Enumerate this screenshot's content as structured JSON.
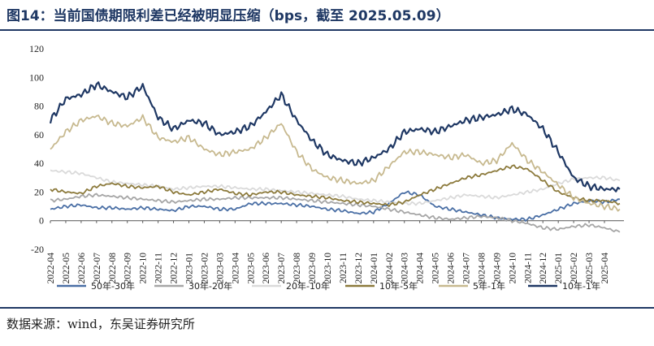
{
  "title": "图14：当前国债期限利差已经被明显压缩（bps，截至 2025.05.09）",
  "source": "数据来源：wind，东吴证券研究所",
  "chart_data": {
    "type": "line",
    "title": "图14：当前国债期限利差已经被明显压缩（bps，截至 2025.05.09）",
    "xlabel": "",
    "ylabel": "",
    "ylim": [
      -20,
      120
    ],
    "yticks": [
      -20,
      0,
      20,
      40,
      60,
      80,
      100,
      120
    ],
    "x_tick_labels": [
      "2022-04",
      "2022-05",
      "2022-06",
      "2022-07",
      "2022-08",
      "2022-09",
      "2022-10",
      "2022-11",
      "2022-12",
      "2023-01",
      "2023-02",
      "2023-03",
      "2023-04",
      "2023-05",
      "2023-06",
      "2023-07",
      "2023-08",
      "2023-09",
      "2023-10",
      "2023-11",
      "2023-12",
      "2024-01",
      "2024-02",
      "2024-03",
      "2024-04",
      "2024-05",
      "2024-06",
      "2024-07",
      "2024-08",
      "2024-09",
      "2024-10",
      "2024-11",
      "2024-12",
      "2025-01",
      "2025-02",
      "2025-03",
      "2025-04"
    ],
    "x_end": "2025-05-09",
    "grid": false,
    "legend_position": "bottom",
    "series": [
      {
        "name": "50年-30年",
        "color": "#4a6fa5",
        "x": [
          "2022-04",
          "2022-05",
          "2022-06",
          "2022-07",
          "2022-08",
          "2022-09",
          "2022-10",
          "2022-11",
          "2022-12",
          "2023-01",
          "2023-02",
          "2023-03",
          "2023-04",
          "2023-05",
          "2023-06",
          "2023-07",
          "2023-08",
          "2023-09",
          "2023-10",
          "2023-11",
          "2023-12",
          "2024-01",
          "2024-02",
          "2024-03",
          "2024-04",
          "2024-05",
          "2024-06",
          "2024-07",
          "2024-08",
          "2024-09",
          "2024-10",
          "2024-11",
          "2024-12",
          "2025-01",
          "2025-02",
          "2025-03",
          "2025-04",
          "2025-05"
        ],
        "values": [
          8,
          10,
          11,
          9,
          9,
          8,
          9,
          8,
          7,
          10,
          10,
          8,
          8,
          12,
          12,
          12,
          11,
          10,
          8,
          7,
          5,
          6,
          12,
          20,
          18,
          10,
          8,
          6,
          4,
          2,
          1,
          1,
          4,
          8,
          12,
          14,
          13,
          15
        ]
      },
      {
        "name": "30年-20年",
        "color": "#a6a6a6",
        "x": [
          "2022-04",
          "2022-05",
          "2022-06",
          "2022-07",
          "2022-08",
          "2022-09",
          "2022-10",
          "2022-11",
          "2022-12",
          "2023-01",
          "2023-02",
          "2023-03",
          "2023-04",
          "2023-05",
          "2023-06",
          "2023-07",
          "2023-08",
          "2023-09",
          "2023-10",
          "2023-11",
          "2023-12",
          "2024-01",
          "2024-02",
          "2024-03",
          "2024-04",
          "2024-05",
          "2024-06",
          "2024-07",
          "2024-08",
          "2024-09",
          "2024-10",
          "2024-11",
          "2024-12",
          "2025-01",
          "2025-02",
          "2025-03",
          "2025-04",
          "2025-05"
        ],
        "values": [
          14,
          15,
          17,
          18,
          17,
          16,
          15,
          14,
          13,
          14,
          15,
          15,
          16,
          16,
          16,
          16,
          15,
          14,
          13,
          12,
          11,
          10,
          8,
          6,
          4,
          2,
          1,
          2,
          3,
          2,
          0,
          -2,
          -5,
          -6,
          -4,
          -3,
          -5,
          -8
        ]
      },
      {
        "name": "20年-10年",
        "color": "#dadada",
        "x": [
          "2022-04",
          "2022-05",
          "2022-06",
          "2022-07",
          "2022-08",
          "2022-09",
          "2022-10",
          "2022-11",
          "2022-12",
          "2023-01",
          "2023-02",
          "2023-03",
          "2023-04",
          "2023-05",
          "2023-06",
          "2023-07",
          "2023-08",
          "2023-09",
          "2023-10",
          "2023-11",
          "2023-12",
          "2024-01",
          "2024-02",
          "2024-03",
          "2024-04",
          "2024-05",
          "2024-06",
          "2024-07",
          "2024-08",
          "2024-09",
          "2024-10",
          "2024-11",
          "2024-12",
          "2025-01",
          "2025-02",
          "2025-03",
          "2025-04",
          "2025-05"
        ],
        "values": [
          35,
          34,
          33,
          30,
          27,
          26,
          25,
          24,
          22,
          23,
          24,
          24,
          23,
          22,
          22,
          21,
          20,
          19,
          18,
          17,
          15,
          14,
          13,
          12,
          12,
          14,
          16,
          18,
          17,
          16,
          18,
          20,
          22,
          26,
          29,
          30,
          30,
          28
        ]
      },
      {
        "name": "10年-5年",
        "color": "#8c7a3c",
        "x": [
          "2022-04",
          "2022-05",
          "2022-06",
          "2022-07",
          "2022-08",
          "2022-09",
          "2022-10",
          "2022-11",
          "2022-12",
          "2023-01",
          "2023-02",
          "2023-03",
          "2023-04",
          "2023-05",
          "2023-06",
          "2023-07",
          "2023-08",
          "2023-09",
          "2023-10",
          "2023-11",
          "2023-12",
          "2024-01",
          "2024-02",
          "2024-03",
          "2024-04",
          "2024-05",
          "2024-06",
          "2024-07",
          "2024-08",
          "2024-09",
          "2024-10",
          "2024-11",
          "2024-12",
          "2025-01",
          "2025-02",
          "2025-03",
          "2025-04",
          "2025-05"
        ],
        "values": [
          22,
          20,
          19,
          24,
          26,
          24,
          23,
          24,
          20,
          18,
          20,
          22,
          19,
          18,
          20,
          20,
          18,
          17,
          16,
          14,
          13,
          12,
          11,
          13,
          18,
          22,
          26,
          30,
          32,
          35,
          38,
          36,
          28,
          20,
          16,
          14,
          14,
          12
        ]
      },
      {
        "name": "5年-1年",
        "color": "#c7b98f",
        "x": [
          "2022-04",
          "2022-05",
          "2022-06",
          "2022-07",
          "2022-08",
          "2022-09",
          "2022-10",
          "2022-11",
          "2022-12",
          "2023-01",
          "2023-02",
          "2023-03",
          "2023-04",
          "2023-05",
          "2023-06",
          "2023-07",
          "2023-08",
          "2023-09",
          "2023-10",
          "2023-11",
          "2023-12",
          "2024-01",
          "2024-02",
          "2024-03",
          "2024-04",
          "2024-05",
          "2024-06",
          "2024-07",
          "2024-08",
          "2024-09",
          "2024-10",
          "2024-11",
          "2024-12",
          "2025-01",
          "2025-02",
          "2025-03",
          "2025-04",
          "2025-05"
        ],
        "values": [
          50,
          62,
          70,
          73,
          68,
          66,
          72,
          58,
          55,
          58,
          50,
          46,
          48,
          50,
          58,
          68,
          48,
          36,
          30,
          28,
          26,
          28,
          38,
          48,
          48,
          46,
          44,
          46,
          40,
          42,
          54,
          42,
          34,
          25,
          16,
          12,
          10,
          8
        ]
      },
      {
        "name": "10年-1年",
        "color": "#1f3864",
        "x": [
          "2022-04",
          "2022-05",
          "2022-06",
          "2022-07",
          "2022-08",
          "2022-09",
          "2022-10",
          "2022-11",
          "2022-12",
          "2023-01",
          "2023-02",
          "2023-03",
          "2023-04",
          "2023-05",
          "2023-06",
          "2023-07",
          "2023-08",
          "2023-09",
          "2023-10",
          "2023-11",
          "2023-12",
          "2024-01",
          "2024-02",
          "2024-03",
          "2024-04",
          "2024-05",
          "2024-06",
          "2024-07",
          "2024-08",
          "2024-09",
          "2024-10",
          "2024-11",
          "2024-12",
          "2025-01",
          "2025-02",
          "2025-03",
          "2025-04",
          "2025-05"
        ],
        "values": [
          70,
          85,
          88,
          95,
          90,
          86,
          94,
          72,
          64,
          70,
          68,
          60,
          62,
          66,
          76,
          88,
          70,
          56,
          46,
          42,
          40,
          44,
          50,
          62,
          64,
          62,
          66,
          70,
          72,
          74,
          78,
          74,
          64,
          48,
          30,
          24,
          22,
          22
        ]
      }
    ]
  }
}
